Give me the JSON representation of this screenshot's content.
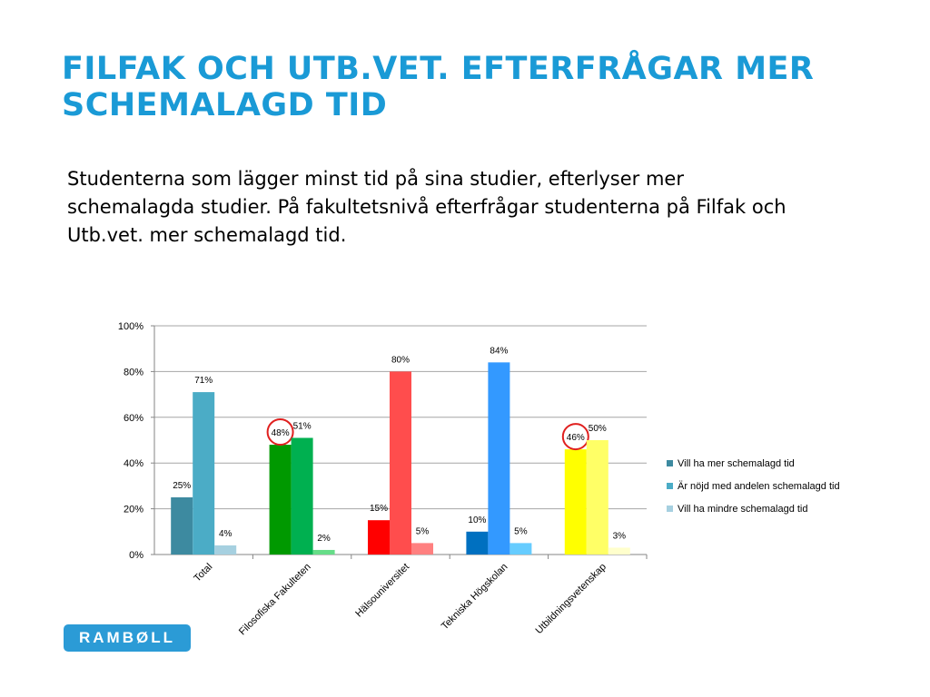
{
  "slide": {
    "title_line1": "FILFAK OCH UTB.VET. EFTERFRÅGAR MER",
    "title_line2": "SCHEMALAGD TID",
    "body_line1": "Studenterna som lägger minst tid på sina studier, efterlyser mer",
    "body_line2": "schemalagda studier. På fakultetsnivå efterfrågar studenterna på Filfak och",
    "body_line3": "Utb.vet. mer schemalagd tid."
  },
  "logo": {
    "text": "RAMBØLL",
    "color": "#2b9bd6"
  },
  "chart_data": {
    "type": "bar",
    "title": "",
    "xlabel": "",
    "ylabel": "",
    "ylim": [
      0,
      100
    ],
    "yticks": [
      "0%",
      "20%",
      "40%",
      "60%",
      "80%",
      "100%"
    ],
    "grid": true,
    "legend_position": "right",
    "categories": [
      "Total",
      "Filosofiska Fakulteten",
      "Hälsouniversitet",
      "Tekniska Högskolan",
      "Utbildningsvetenskap"
    ],
    "series": [
      {
        "name": "Vill ha mer schemalagd tid",
        "values": [
          25,
          48,
          15,
          10,
          46
        ],
        "labels": [
          "25%",
          "48%",
          "15%",
          "10%",
          "46%"
        ]
      },
      {
        "name": "Är nöjd med andelen schemalagd tid",
        "values": [
          71,
          51,
          80,
          84,
          50
        ],
        "labels": [
          "71%",
          "51%",
          "80%",
          "84%",
          "50%"
        ]
      },
      {
        "name": "Vill ha mindre schemalagd tid",
        "values": [
          4,
          2,
          5,
          5,
          3
        ],
        "labels": [
          "4%",
          "2%",
          "5%",
          "5%",
          "3%"
        ]
      }
    ],
    "legend_colors": [
      "#3d8aa0",
      "#4bacc6",
      "#a6d0e0"
    ],
    "bar_colors": [
      [
        "#3d8aa0",
        "#4bacc6",
        "#a6d0e0"
      ],
      [
        "#009900",
        "#00b050",
        "#66dd88"
      ],
      [
        "#ff0000",
        "#ff4d4d",
        "#ff8080"
      ],
      [
        "#0070c0",
        "#3399ff",
        "#66ccff"
      ],
      [
        "#ffff00",
        "#ffff66",
        "#ffffcc"
      ]
    ],
    "highlight_circles": [
      {
        "category": "Filosofiska Fakulteten",
        "series": "Vill ha mer schemalagd tid",
        "color": "#e0201f"
      },
      {
        "category": "Utbildningsvetenskap",
        "series": "Vill ha mer schemalagd tid",
        "color": "#e0201f"
      }
    ]
  }
}
